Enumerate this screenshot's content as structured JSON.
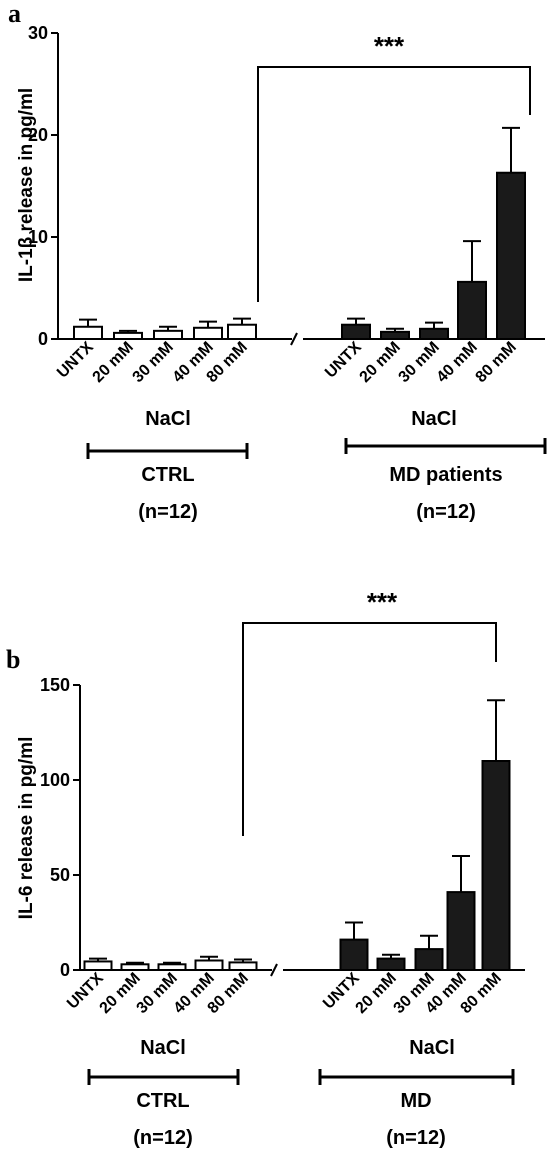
{
  "chart_data": [
    {
      "type": "bar",
      "panel": "a",
      "ylabel": "IL-1β release in pg/ml",
      "ylim": [
        0,
        30
      ],
      "yticks": [
        0,
        10,
        20,
        30
      ],
      "categories": [
        "UNTX",
        "20 mM",
        "30 mM",
        "40 mM",
        "80 mM"
      ],
      "series": [
        {
          "values": [
            1.2,
            0.6,
            0.8,
            1.1,
            1.4
          ],
          "errors": [
            0.7,
            0.2,
            0.4,
            0.6,
            0.6
          ],
          "color": "#ffffff"
        },
        {
          "values": [
            1.4,
            0.7,
            1.0,
            5.6,
            16.3
          ],
          "errors": [
            0.6,
            0.3,
            0.6,
            4.0,
            4.4
          ],
          "color": "#1a1a1a"
        }
      ],
      "treatment_label": "NaCl",
      "groups": [
        {
          "name": "CTRL",
          "n": "(n=12)"
        },
        {
          "name": "MD patients",
          "n": "(n=12)"
        }
      ],
      "significance": "***"
    },
    {
      "type": "bar",
      "panel": "b",
      "ylabel": "IL-6 release in pg/ml",
      "ylim": [
        0,
        150
      ],
      "yticks": [
        0,
        50,
        100,
        150
      ],
      "categories": [
        "UNTX",
        "20 mM",
        "30 mM",
        "40 mM",
        "80 mM"
      ],
      "series": [
        {
          "values": [
            4.5,
            3.0,
            3.0,
            5.0,
            4.0
          ],
          "errors": [
            1.5,
            0.8,
            0.8,
            2.0,
            1.5
          ],
          "color": "#ffffff"
        },
        {
          "values": [
            16,
            6,
            11,
            41,
            110
          ],
          "errors": [
            9,
            2,
            7,
            19,
            32
          ],
          "color": "#1a1a1a"
        }
      ],
      "treatment_label": "NaCl",
      "groups": [
        {
          "name": "CTRL",
          "n": "(n=12)"
        },
        {
          "name": "MD",
          "n": "(n=12)"
        }
      ],
      "significance": "***"
    }
  ]
}
